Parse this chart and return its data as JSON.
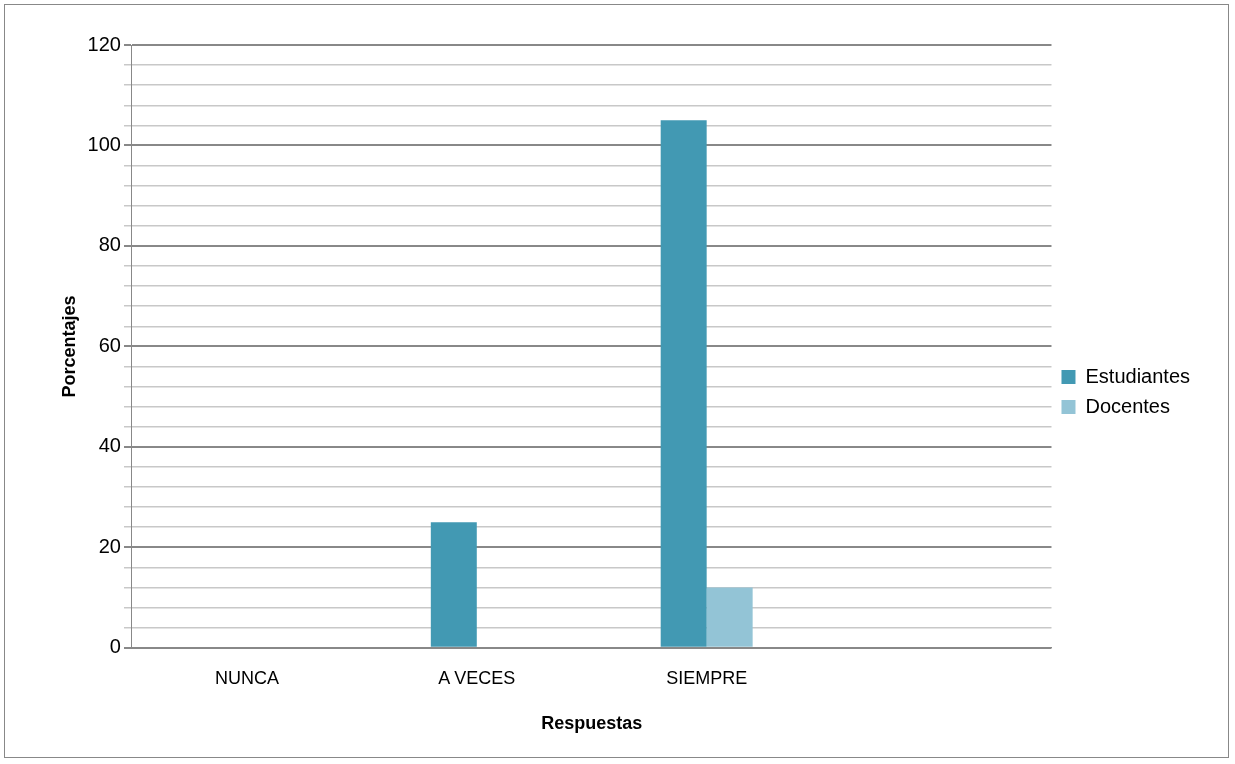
{
  "chart_data": {
    "type": "bar",
    "xlabel": "Respuestas",
    "ylabel": "Porcentajes",
    "categories": [
      "NUNCA",
      "A VECES",
      "SIEMPRE",
      null
    ],
    "series": [
      {
        "name": "Estudiantes",
        "color": "#4299b3",
        "values": [
          0,
          25,
          105,
          null
        ]
      },
      {
        "name": "Docentes",
        "color": "#93c4d6",
        "values": [
          0,
          0,
          12,
          null
        ]
      }
    ],
    "ylim": [
      0,
      120
    ],
    "yticks": [
      0,
      {
        "value": 4,
        "label": null
      },
      {
        "value": 8,
        "label": null
      },
      {
        "value": 12,
        "label": null
      },
      {
        "value": 16,
        "label": null
      },
      20,
      {
        "value": 24,
        "label": null
      },
      {
        "value": 28,
        "label": null
      },
      {
        "value": 32,
        "label": null
      },
      {
        "value": 36,
        "label": null
      },
      40,
      {
        "value": 44,
        "label": null
      },
      {
        "value": 48,
        "label": null
      },
      {
        "value": 52,
        "label": null
      },
      {
        "value": 56,
        "label": null
      },
      60,
      {
        "value": 64,
        "label": null
      },
      {
        "value": 68,
        "label": null
      },
      {
        "value": 72,
        "label": null
      },
      {
        "value": 76,
        "label": null
      },
      80,
      {
        "value": 84,
        "label": null
      },
      {
        "value": 88,
        "label": null
      },
      {
        "value": 92,
        "label": null
      },
      {
        "value": 96,
        "label": null
      },
      100,
      {
        "value": 104,
        "label": null
      },
      {
        "value": 108,
        "label": null
      },
      {
        "value": 112,
        "label": null
      },
      {
        "value": 116,
        "label": null
      },
      120
    ],
    "grid": "y",
    "legend": "right"
  }
}
